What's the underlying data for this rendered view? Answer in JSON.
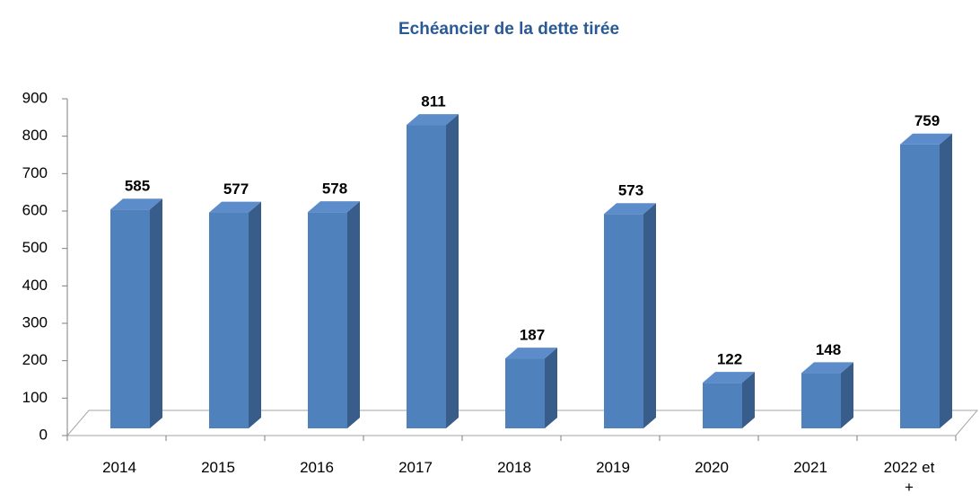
{
  "chart_data": {
    "type": "bar3d",
    "title": "Echéancier de la dette tirée",
    "categories": [
      "2014",
      "2015",
      "2016",
      "2017",
      "2018",
      "2019",
      "2020",
      "2021",
      "2022 et +"
    ],
    "values": [
      585,
      577,
      578,
      811,
      187,
      573,
      122,
      148,
      759
    ],
    "color": "#4f81bd",
    "ylim": [
      0,
      900
    ],
    "yticks": [
      0,
      100,
      200,
      300,
      400,
      500,
      600,
      700,
      800,
      900
    ]
  }
}
